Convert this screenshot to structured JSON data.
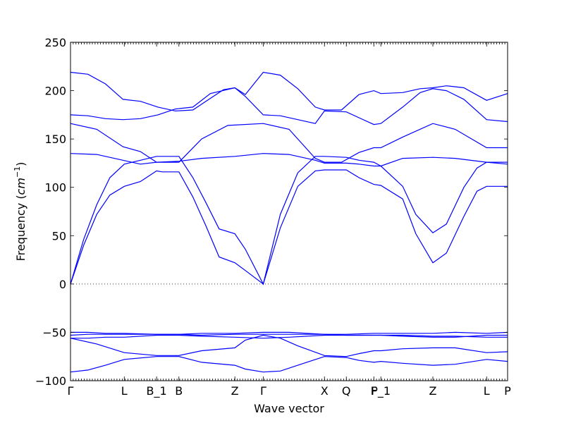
{
  "chart_data": {
    "type": "line",
    "title": "",
    "xlabel": "Wave vector",
    "ylabel": "Frequency ($cm^{-1}$)",
    "ylabel_parts": {
      "text": "Frequency (",
      "unit_base": "cm",
      "unit_exp": "−1",
      "close": ")"
    },
    "ylim": [
      -100,
      250
    ],
    "yticks": [
      -100,
      -50,
      0,
      50,
      100,
      150,
      200,
      250
    ],
    "xlim": [
      0,
      100
    ],
    "xticks": [
      {
        "x": 0,
        "label": "Γ"
      },
      {
        "x": 12.3,
        "label": "L"
      },
      {
        "x": 19.7,
        "label": "B_1"
      },
      {
        "x": 24.8,
        "label": "B"
      },
      {
        "x": 37.6,
        "label": "Z"
      },
      {
        "x": 44.1,
        "label": "Γ"
      },
      {
        "x": 58.1,
        "label": "X"
      },
      {
        "x": 63.1,
        "label": "Q"
      },
      {
        "x": 69.4,
        "label": "F"
      },
      {
        "x": 71.0,
        "label": "P_1"
      },
      {
        "x": 82.9,
        "label": "Z"
      },
      {
        "x": 95.2,
        "label": "L"
      },
      {
        "x": 100,
        "label": "P"
      }
    ],
    "grid": false,
    "zero_line": true,
    "series": [
      {
        "values": [
          [
            0,
            219
          ],
          [
            4,
            217
          ],
          [
            8,
            207
          ],
          [
            12,
            191
          ],
          [
            16,
            189
          ],
          [
            20,
            183
          ],
          [
            24,
            179
          ],
          [
            28,
            180
          ],
          [
            32,
            192
          ],
          [
            35,
            201
          ],
          [
            37.6,
            203
          ],
          [
            40,
            196
          ],
          [
            44.1,
            219
          ],
          [
            48,
            216
          ],
          [
            52,
            202
          ],
          [
            56,
            183
          ],
          [
            58.1,
            180
          ],
          [
            62,
            180
          ],
          [
            66,
            196
          ],
          [
            69.4,
            200
          ],
          [
            71,
            197
          ],
          [
            76,
            198
          ],
          [
            80,
            202
          ],
          [
            82.9,
            203
          ],
          [
            86,
            205
          ],
          [
            90,
            203
          ],
          [
            95.2,
            190
          ],
          [
            100,
            197
          ]
        ]
      },
      {
        "values": [
          [
            0,
            175
          ],
          [
            4,
            174
          ],
          [
            8,
            171
          ],
          [
            12,
            170
          ],
          [
            16,
            171
          ],
          [
            20,
            175
          ],
          [
            24,
            181
          ],
          [
            28,
            183
          ],
          [
            32,
            197
          ],
          [
            37.6,
            203
          ],
          [
            40,
            194
          ],
          [
            44.1,
            175
          ],
          [
            48,
            174
          ],
          [
            52,
            170
          ],
          [
            56,
            166
          ],
          [
            58.1,
            179
          ],
          [
            63.1,
            178
          ],
          [
            66,
            172
          ],
          [
            69.4,
            165
          ],
          [
            71,
            166
          ],
          [
            76,
            183
          ],
          [
            80,
            198
          ],
          [
            82.9,
            202
          ],
          [
            86,
            200
          ],
          [
            90,
            191
          ],
          [
            95.2,
            170
          ],
          [
            100,
            168
          ]
        ]
      },
      {
        "values": [
          [
            0,
            166
          ],
          [
            6,
            160
          ],
          [
            12,
            142
          ],
          [
            16,
            137
          ],
          [
            19.7,
            126
          ],
          [
            24.8,
            126
          ],
          [
            30,
            150
          ],
          [
            36,
            164
          ],
          [
            44.1,
            166
          ],
          [
            50,
            160
          ],
          [
            56,
            130
          ],
          [
            58.1,
            126
          ],
          [
            62,
            126
          ],
          [
            66,
            136
          ],
          [
            69.4,
            141
          ],
          [
            71,
            141
          ],
          [
            76,
            152
          ],
          [
            82.9,
            166
          ],
          [
            88,
            160
          ],
          [
            95.2,
            141
          ],
          [
            100,
            141
          ]
        ]
      },
      {
        "values": [
          [
            0,
            135
          ],
          [
            6,
            134
          ],
          [
            12,
            128
          ],
          [
            16,
            124
          ],
          [
            19.7,
            126
          ],
          [
            24.8,
            127
          ],
          [
            30,
            130
          ],
          [
            37.6,
            132
          ],
          [
            44.1,
            135
          ],
          [
            50,
            134
          ],
          [
            56,
            128
          ],
          [
            58.1,
            125
          ],
          [
            63.1,
            125
          ],
          [
            66,
            124
          ],
          [
            69.4,
            122
          ],
          [
            71,
            122
          ],
          [
            76,
            130
          ],
          [
            82.9,
            131
          ],
          [
            88,
            130
          ],
          [
            95.2,
            126
          ],
          [
            100,
            124
          ]
        ]
      },
      {
        "values": [
          [
            0,
            0
          ],
          [
            3,
            46
          ],
          [
            6,
            82
          ],
          [
            9,
            110
          ],
          [
            12.3,
            124
          ],
          [
            16,
            128
          ],
          [
            19.7,
            132
          ],
          [
            24.8,
            132
          ],
          [
            28,
            110
          ],
          [
            31,
            84
          ],
          [
            34,
            57
          ],
          [
            37.6,
            52
          ],
          [
            40,
            36
          ],
          [
            44.1,
            0
          ],
          [
            48,
            72
          ],
          [
            52,
            115
          ],
          [
            56,
            132
          ],
          [
            58.1,
            132
          ],
          [
            63.1,
            131
          ],
          [
            66,
            128
          ],
          [
            69.4,
            126
          ],
          [
            71,
            122
          ],
          [
            76,
            101
          ],
          [
            79,
            72
          ],
          [
            82.9,
            53
          ],
          [
            86,
            62
          ],
          [
            90,
            100
          ],
          [
            93,
            120
          ],
          [
            95.2,
            126
          ],
          [
            100,
            126
          ]
        ]
      },
      {
        "values": [
          [
            0,
            0
          ],
          [
            3,
            40
          ],
          [
            6,
            72
          ],
          [
            9,
            92
          ],
          [
            12.3,
            101
          ],
          [
            16,
            106
          ],
          [
            19.7,
            117
          ],
          [
            21,
            116
          ],
          [
            24.8,
            116
          ],
          [
            28,
            90
          ],
          [
            31,
            60
          ],
          [
            34,
            28
          ],
          [
            37.6,
            22
          ],
          [
            40,
            14
          ],
          [
            44.1,
            0
          ],
          [
            48,
            58
          ],
          [
            52,
            101
          ],
          [
            56,
            117
          ],
          [
            58.1,
            118
          ],
          [
            63.1,
            118
          ],
          [
            66,
            110
          ],
          [
            69.4,
            103
          ],
          [
            71,
            102
          ],
          [
            76,
            88
          ],
          [
            79,
            52
          ],
          [
            82.9,
            22
          ],
          [
            86,
            32
          ],
          [
            90,
            70
          ],
          [
            93,
            96
          ],
          [
            95.2,
            101
          ],
          [
            100,
            101
          ]
        ]
      },
      {
        "values": [
          [
            0,
            -50
          ],
          [
            4,
            -50
          ],
          [
            8,
            -51
          ],
          [
            12.3,
            -51
          ],
          [
            19.7,
            -52
          ],
          [
            24.8,
            -52
          ],
          [
            30,
            -51
          ],
          [
            37.6,
            -51
          ],
          [
            44.1,
            -50
          ],
          [
            50,
            -50
          ],
          [
            58.1,
            -52
          ],
          [
            63.1,
            -52
          ],
          [
            69.4,
            -51
          ],
          [
            71,
            -51
          ],
          [
            76,
            -51
          ],
          [
            82.9,
            -51
          ],
          [
            88,
            -50
          ],
          [
            95.2,
            -51
          ],
          [
            100,
            -50
          ]
        ]
      },
      {
        "values": [
          [
            0,
            -53
          ],
          [
            4,
            -52
          ],
          [
            8,
            -52
          ],
          [
            12.3,
            -52
          ],
          [
            19.7,
            -52
          ],
          [
            24.8,
            -52
          ],
          [
            30,
            -53
          ],
          [
            37.6,
            -52
          ],
          [
            44.1,
            -52
          ],
          [
            50,
            -52
          ],
          [
            58.1,
            -52
          ],
          [
            63.1,
            -53
          ],
          [
            69.4,
            -53
          ],
          [
            71,
            -53
          ],
          [
            76,
            -54
          ],
          [
            82.9,
            -55
          ],
          [
            88,
            -55
          ],
          [
            95.2,
            -53
          ],
          [
            100,
            -53
          ]
        ]
      },
      {
        "values": [
          [
            0,
            -56
          ],
          [
            4,
            -56
          ],
          [
            8,
            -55
          ],
          [
            12.3,
            -55
          ],
          [
            19.7,
            -53
          ],
          [
            24.8,
            -53
          ],
          [
            30,
            -54
          ],
          [
            37.6,
            -55
          ],
          [
            44.1,
            -56
          ],
          [
            50,
            -55
          ],
          [
            58.1,
            -53
          ],
          [
            63.1,
            -53
          ],
          [
            69.4,
            -53
          ],
          [
            71,
            -53
          ],
          [
            76,
            -53
          ],
          [
            82.9,
            -54
          ],
          [
            88,
            -54
          ],
          [
            95.2,
            -55
          ],
          [
            100,
            -55
          ]
        ]
      },
      {
        "values": [
          [
            0,
            -56
          ],
          [
            6,
            -62
          ],
          [
            12.3,
            -71
          ],
          [
            19.7,
            -74
          ],
          [
            24.8,
            -74
          ],
          [
            30,
            -69
          ],
          [
            37.6,
            -66
          ],
          [
            40,
            -58
          ],
          [
            44.1,
            -53
          ],
          [
            48,
            -56
          ],
          [
            52,
            -64
          ],
          [
            58.1,
            -74
          ],
          [
            63.1,
            -75
          ],
          [
            66,
            -72
          ],
          [
            69.4,
            -69
          ],
          [
            71,
            -69
          ],
          [
            76,
            -67
          ],
          [
            82.9,
            -66
          ],
          [
            88,
            -66
          ],
          [
            95.2,
            -71
          ],
          [
            100,
            -70
          ]
        ]
      },
      {
        "values": [
          [
            0,
            -91
          ],
          [
            4,
            -89
          ],
          [
            8,
            -84
          ],
          [
            12.3,
            -78
          ],
          [
            19.7,
            -75
          ],
          [
            24.8,
            -75
          ],
          [
            30,
            -81
          ],
          [
            37.6,
            -84
          ],
          [
            40,
            -88
          ],
          [
            44.1,
            -91
          ],
          [
            48,
            -90
          ],
          [
            52,
            -84
          ],
          [
            58.1,
            -75
          ],
          [
            63.1,
            -76
          ],
          [
            66,
            -79
          ],
          [
            69.4,
            -81
          ],
          [
            71,
            -80
          ],
          [
            76,
            -82
          ],
          [
            82.9,
            -84
          ],
          [
            88,
            -83
          ],
          [
            95.2,
            -78
          ],
          [
            100,
            -80
          ]
        ]
      }
    ]
  }
}
